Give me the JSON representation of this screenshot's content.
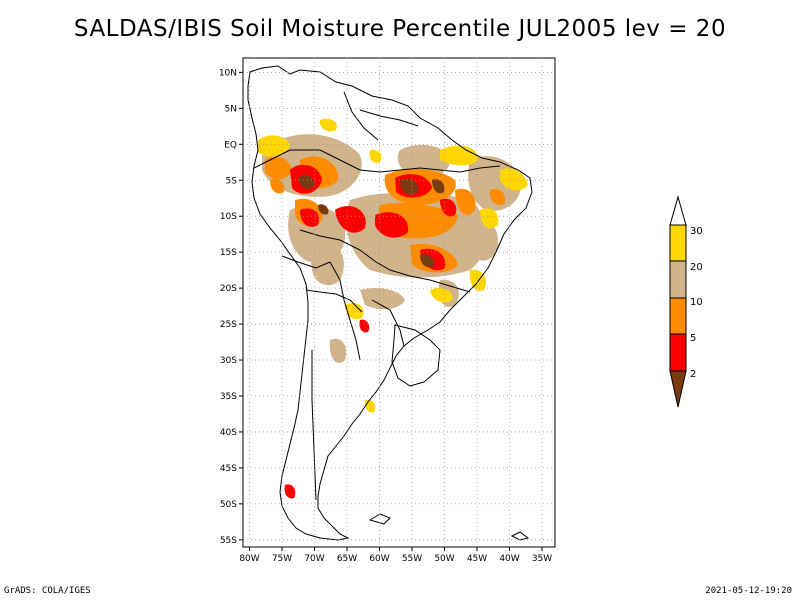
{
  "title": "SALDAS/IBIS Soil Moisture Percentile JUL2005 lev = 20",
  "footer": {
    "left": "GrADS: COLA/IGES",
    "right": "2021-05-12-19:20"
  },
  "map": {
    "lat_ticks": [
      "10N",
      "5N",
      "EQ",
      "5S",
      "10S",
      "15S",
      "20S",
      "25S",
      "30S",
      "35S",
      "40S",
      "45S",
      "50S",
      "55S"
    ],
    "lon_ticks": [
      "80W",
      "75W",
      "70W",
      "65W",
      "60W",
      "55W",
      "50W",
      "45W",
      "40W",
      "35W"
    ],
    "lat_range": [
      -56,
      12
    ],
    "lon_range": [
      -81,
      -33
    ]
  },
  "colorbar": {
    "labels": [
      "30",
      "20",
      "10",
      "5",
      "2"
    ],
    "colors": {
      "lt2": "#7a3a12",
      "2to5": "#ff0000",
      "5to10": "#ff8c00",
      "10to20": "#d2b48c",
      "20to30": "#ffd700",
      "gt30": "#ffffff"
    }
  }
}
